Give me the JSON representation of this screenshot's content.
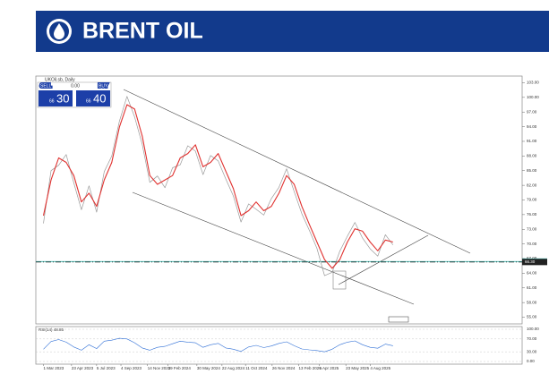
{
  "header": {
    "title": "BRENT OIL"
  },
  "chart_data": {
    "type": "line",
    "title": "UKOil.sb, Daily",
    "trade_panel": {
      "sell_label": "SELL",
      "buy_label": "BUY",
      "lot": "0.00",
      "sell_small": "66",
      "sell_big": "30",
      "buy_small": "66",
      "buy_big": "40"
    },
    "x": [
      0,
      1,
      2,
      3,
      4,
      5,
      6,
      7,
      8,
      9,
      10,
      11,
      12,
      13,
      14,
      15,
      16,
      17,
      18,
      19,
      20,
      21,
      22,
      23,
      24,
      25,
      26,
      27,
      28,
      29,
      30,
      31,
      32,
      33,
      34,
      35,
      36,
      37,
      38,
      39,
      40,
      41,
      42,
      43,
      44,
      45,
      46
    ],
    "xlim": [
      -1,
      63
    ],
    "xticks": [
      {
        "value": 0,
        "label": "1 Mar 2023"
      },
      {
        "value": 3.7,
        "label": "23 Apr 2023"
      },
      {
        "value": 7,
        "label": "5 Jul 2023"
      },
      {
        "value": 10.2,
        "label": "4 Sep 2023"
      },
      {
        "value": 13.7,
        "label": "14 Nov 2023"
      },
      {
        "value": 16.4,
        "label": "19 Feb 2024"
      },
      {
        "value": 20.2,
        "label": "30 May 2024"
      },
      {
        "value": 23.5,
        "label": "22 Aug 2024"
      },
      {
        "value": 26.6,
        "label": "11 Oct 2024"
      },
      {
        "value": 30.1,
        "label": "26 Nov 2024"
      },
      {
        "value": 33.6,
        "label": "13 Feb 2025"
      },
      {
        "value": 36.3,
        "label": "6 Apr 2025"
      },
      {
        "value": 39.8,
        "label": "23 May 2025"
      },
      {
        "value": 43,
        "label": "4 Aug 2025"
      }
    ],
    "ylim": [
      54,
      104
    ],
    "yticks": [
      {
        "value": 55,
        "label": "55.00"
      },
      {
        "value": 58,
        "label": "58.00"
      },
      {
        "value": 61,
        "label": "61.00"
      },
      {
        "value": 64,
        "label": "64.00"
      },
      {
        "value": 67,
        "label": "67.00"
      },
      {
        "value": 70,
        "label": "70.00"
      },
      {
        "value": 73,
        "label": "73.00"
      },
      {
        "value": 76,
        "label": "76.00"
      },
      {
        "value": 79,
        "label": "79.00"
      },
      {
        "value": 82,
        "label": "82.00"
      },
      {
        "value": 85,
        "label": "85.00"
      },
      {
        "value": 88,
        "label": "88.00"
      },
      {
        "value": 91,
        "label": "91.00"
      },
      {
        "value": 94,
        "label": "94.00"
      },
      {
        "value": 97,
        "label": "97.00"
      },
      {
        "value": 100,
        "label": "100.00"
      },
      {
        "value": 103,
        "label": "103.00"
      }
    ],
    "series": [
      {
        "color": "#9a9a9a",
        "values": [
          74.2,
          85.0,
          86.1,
          88.3,
          82.5,
          77.0,
          81.9,
          76.5,
          84.8,
          88.0,
          95.1,
          100.2,
          96.0,
          90.4,
          82.6,
          83.9,
          81.5,
          85.6,
          86.2,
          90.1,
          89.0,
          84.2,
          88.1,
          87.0,
          83.3,
          79.8,
          74.5,
          78.2,
          77.1,
          75.9,
          79.3,
          81.6,
          85.4,
          80.7,
          76.2,
          72.8,
          69.1,
          63.5,
          64.2,
          68.5,
          71.6,
          74.4,
          71.2,
          69.0,
          67.5,
          71.9,
          69.8
        ]
      },
      {
        "color": "#e0312f",
        "values": [
          75.8,
          83.1,
          87.6,
          86.7,
          84.0,
          78.6,
          80.4,
          77.7,
          83.1,
          86.7,
          93.9,
          98.5,
          97.6,
          92.1,
          84.0,
          82.2,
          83.1,
          84.0,
          87.6,
          88.5,
          90.3,
          85.8,
          86.7,
          88.5,
          84.9,
          81.3,
          75.8,
          76.8,
          78.6,
          76.8,
          77.7,
          80.4,
          84.0,
          82.2,
          77.7,
          74.0,
          70.4,
          66.8,
          65.0,
          66.8,
          70.4,
          73.1,
          72.6,
          70.4,
          68.6,
          70.8,
          70.4
        ]
      }
    ],
    "price_levels": [
      {
        "value": 66.4,
        "label": "66.40",
        "color": "#3bb0a8"
      },
      {
        "value": 66.3,
        "label": "66.30",
        "color": "#222222"
      }
    ],
    "rsi": {
      "title": "RSI(14) 48.85",
      "color": "#2f6fd6",
      "values": [
        38,
        62,
        68,
        60,
        45,
        35,
        52,
        40,
        63,
        66,
        72,
        70,
        58,
        42,
        35,
        44,
        47,
        55,
        63,
        60,
        58,
        44,
        52,
        56,
        42,
        38,
        31,
        45,
        50,
        43,
        48,
        56,
        61,
        49,
        39,
        36,
        34,
        30,
        38,
        52,
        60,
        64,
        52,
        44,
        41,
        54,
        49
      ],
      "ylim": [
        0,
        100
      ],
      "yticks": [
        {
          "value": 0,
          "label": "0.00"
        },
        {
          "value": 30,
          "label": "30.00"
        },
        {
          "value": 70,
          "label": "70.00"
        },
        {
          "value": 100,
          "label": "100.00"
        }
      ]
    }
  }
}
